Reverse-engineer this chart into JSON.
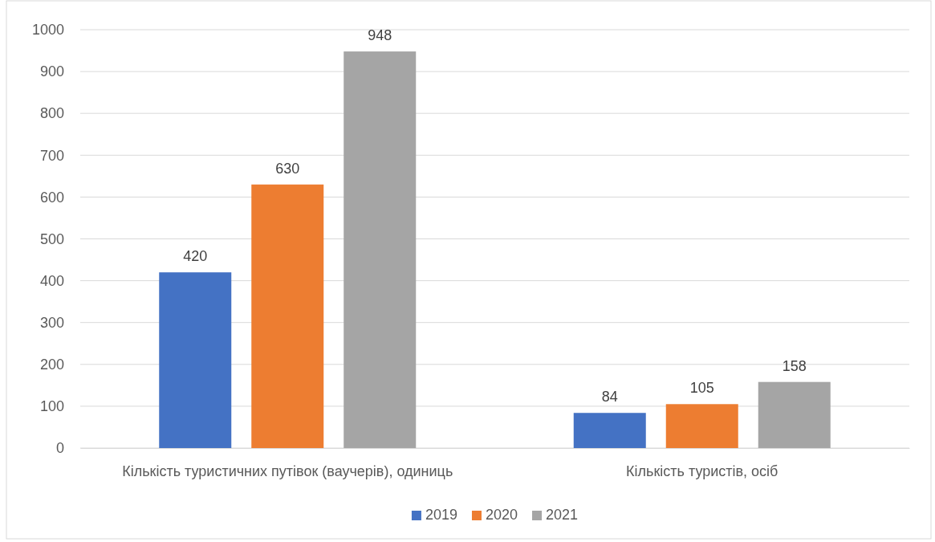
{
  "chart_data": {
    "type": "bar",
    "categories": [
      "Кількість туристичних путівок (ваучерів), одиниць",
      "Кількість туристів, осіб"
    ],
    "series": [
      {
        "name": "2019",
        "color": "#4472c4",
        "values": [
          420,
          84
        ]
      },
      {
        "name": "2020",
        "color": "#ed7d31",
        "values": [
          630,
          105
        ]
      },
      {
        "name": "2021",
        "color": "#a5a5a5",
        "values": [
          948,
          158
        ]
      }
    ],
    "ylim": [
      0,
      1000
    ],
    "yticks": [
      0,
      100,
      200,
      300,
      400,
      500,
      600,
      700,
      800,
      900,
      1000
    ],
    "grid": "y",
    "legend": "bottom",
    "data_labels": true
  }
}
